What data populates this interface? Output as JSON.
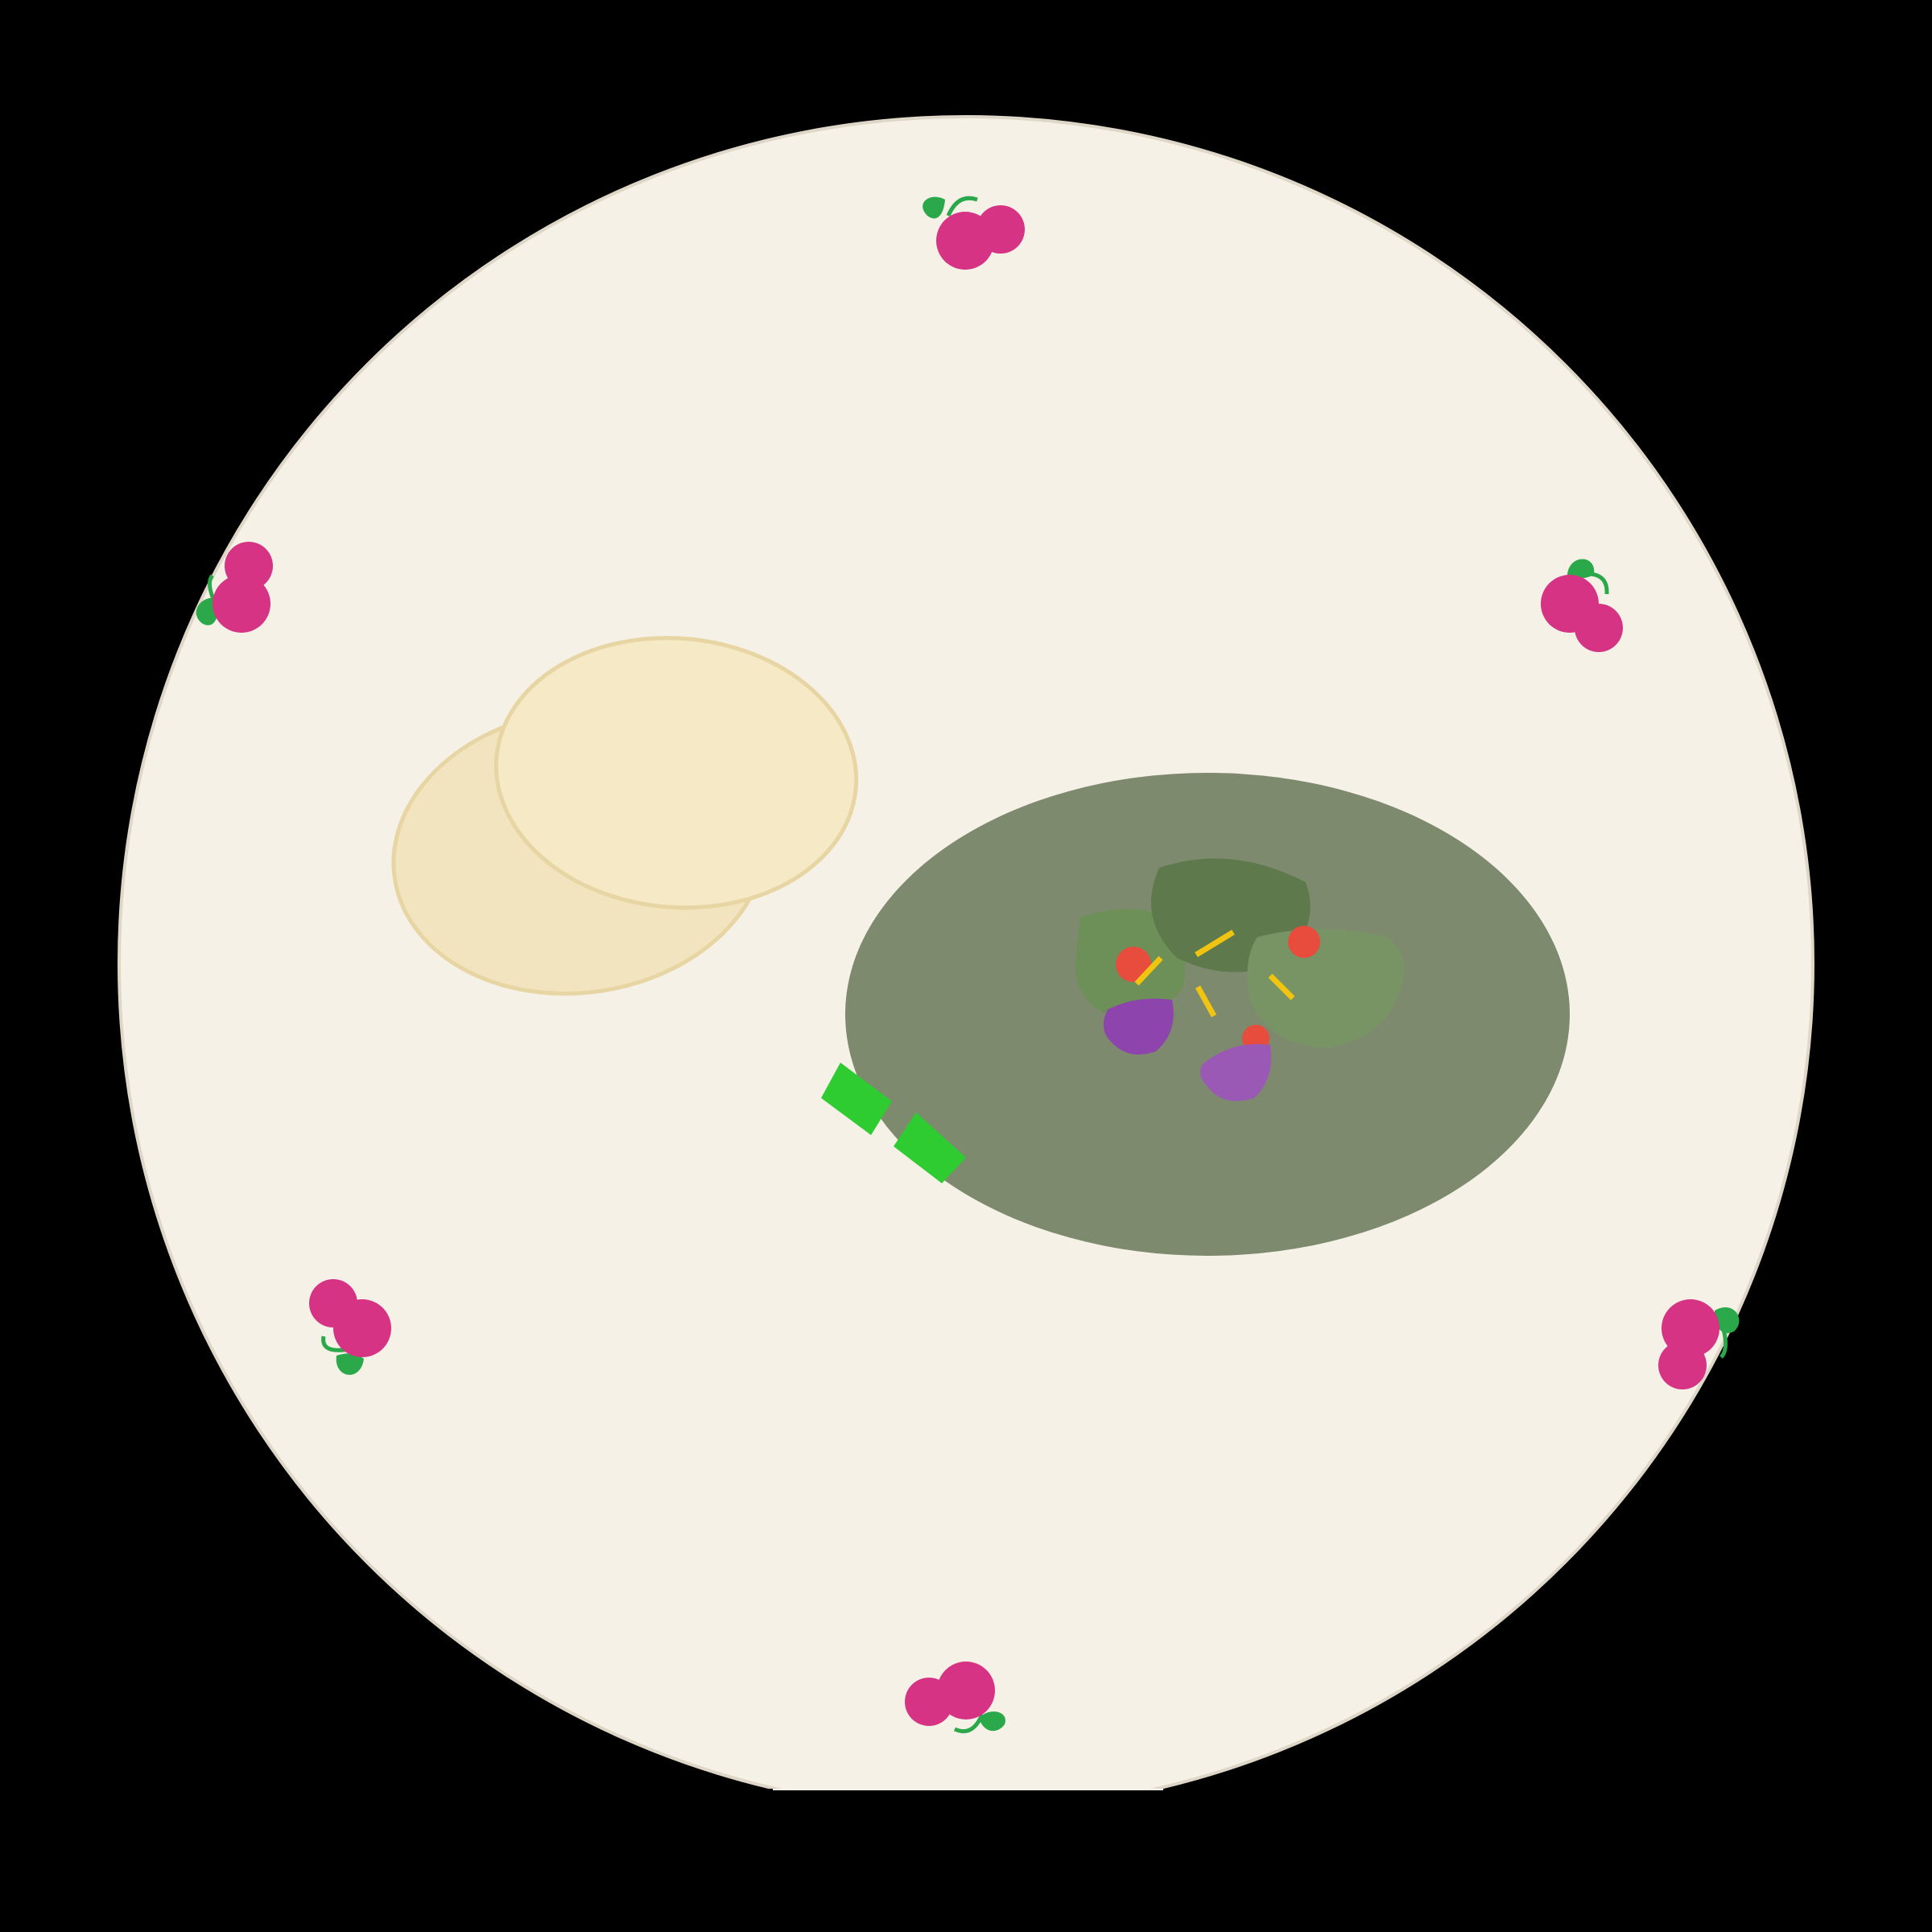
{
  "scene": {
    "description_free": true,
    "background_color": "#000000"
  },
  "colors": {
    "plate_fill": "#f5f1e7",
    "plate_rim": "#ded6c7",
    "flatbread_back": "#f2e4bf",
    "flatbread_front": "#f6e9c6",
    "flatbread_outline": "#e7d5a3",
    "stew_bowl": "#7e8a6e",
    "leaf_dark": "#5e7a4d",
    "leaf_mid": "#6d8f58",
    "leaf_light": "#789464",
    "tomato": "#e74c3c",
    "onion_dark": "#8e44ad",
    "onion_light": "#9b59b6",
    "pepper_strip": "#f1c40f",
    "chili_green": "#2ecc31",
    "berry": "#d63384",
    "berry_leaf": "#2aa84a"
  },
  "icons": {
    "plate": "round-plate",
    "flatbread": "flatbread-icon",
    "stew": "green-stew-icon",
    "berries": "berry-cluster-icon",
    "chili": "green-chili-icon"
  },
  "decorations": {
    "berry_cluster_count": 6
  }
}
